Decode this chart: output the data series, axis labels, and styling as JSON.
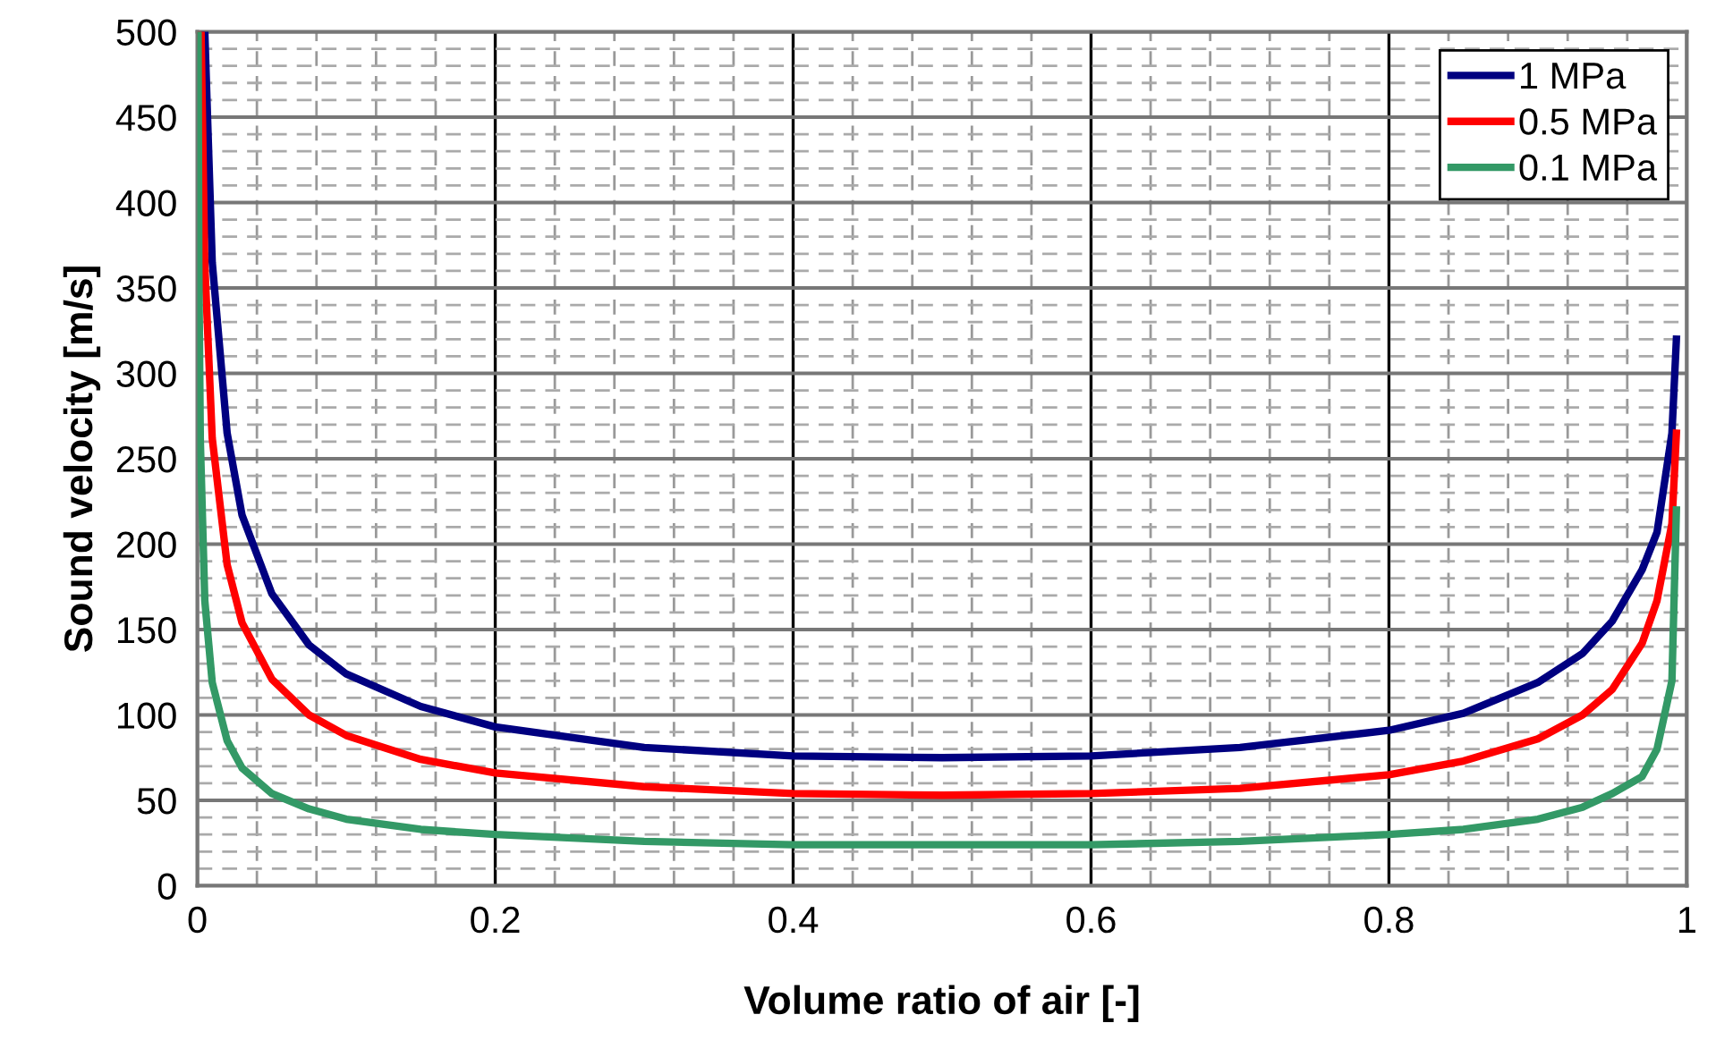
{
  "chart_data": {
    "type": "line",
    "xlabel": "Volume ratio of air [-]",
    "ylabel": "Sound velocity [m/s]",
    "xlim": [
      0,
      1
    ],
    "ylim": [
      0,
      500
    ],
    "xticks": [
      0,
      {
        "value": 0.04,
        "label": null
      },
      {
        "value": 0.08,
        "label": null
      },
      {
        "value": 0.12,
        "label": null
      },
      {
        "value": 0.16,
        "label": null
      },
      0.2,
      {
        "value": 0.24,
        "label": null
      },
      {
        "value": 0.28,
        "label": null
      },
      {
        "value": 0.32,
        "label": null
      },
      {
        "value": 0.36,
        "label": null
      },
      0.4,
      {
        "value": 0.44,
        "label": null
      },
      {
        "value": 0.48,
        "label": null
      },
      {
        "value": 0.52,
        "label": null
      },
      {
        "value": 0.56,
        "label": null
      },
      0.6,
      {
        "value": 0.64,
        "label": null
      },
      {
        "value": 0.68,
        "label": null
      },
      {
        "value": 0.72,
        "label": null
      },
      {
        "value": 0.76,
        "label": null
      },
      0.8,
      {
        "value": 0.84,
        "label": null
      },
      {
        "value": 0.88,
        "label": null
      },
      {
        "value": 0.92,
        "label": null
      },
      {
        "value": 0.96,
        "label": null
      },
      1
    ],
    "yticks": [
      0,
      {
        "value": 10,
        "label": null
      },
      {
        "value": 20,
        "label": null
      },
      {
        "value": 30,
        "label": null
      },
      {
        "value": 40,
        "label": null
      },
      50,
      {
        "value": 60,
        "label": null
      },
      {
        "value": 70,
        "label": null
      },
      {
        "value": 80,
        "label": null
      },
      {
        "value": 90,
        "label": null
      },
      100,
      {
        "value": 110,
        "label": null
      },
      {
        "value": 120,
        "label": null
      },
      {
        "value": 130,
        "label": null
      },
      {
        "value": 140,
        "label": null
      },
      150,
      {
        "value": 160,
        "label": null
      },
      {
        "value": 170,
        "label": null
      },
      {
        "value": 180,
        "label": null
      },
      {
        "value": 190,
        "label": null
      },
      200,
      {
        "value": 210,
        "label": null
      },
      {
        "value": 220,
        "label": null
      },
      {
        "value": 230,
        "label": null
      },
      {
        "value": 240,
        "label": null
      },
      250,
      {
        "value": 260,
        "label": null
      },
      {
        "value": 270,
        "label": null
      },
      {
        "value": 280,
        "label": null
      },
      {
        "value": 290,
        "label": null
      },
      300,
      {
        "value": 310,
        "label": null
      },
      {
        "value": 320,
        "label": null
      },
      {
        "value": 330,
        "label": null
      },
      {
        "value": 340,
        "label": null
      },
      350,
      {
        "value": 360,
        "label": null
      },
      {
        "value": 370,
        "label": null
      },
      {
        "value": 380,
        "label": null
      },
      {
        "value": 390,
        "label": null
      },
      400,
      {
        "value": 410,
        "label": null
      },
      {
        "value": 420,
        "label": null
      },
      {
        "value": 430,
        "label": null
      },
      {
        "value": 440,
        "label": null
      },
      450,
      {
        "value": 460,
        "label": null
      },
      {
        "value": 470,
        "label": null
      },
      {
        "value": 480,
        "label": null
      },
      {
        "value": 490,
        "label": null
      },
      500
    ],
    "grid": true,
    "legend": "top right",
    "marker": "none",
    "line_style": "solid",
    "series": [
      {
        "name": "1 MPa",
        "color": "#000080",
        "x": [
          0.005,
          0.01,
          0.02,
          0.03,
          0.05,
          0.075,
          0.1,
          0.15,
          0.2,
          0.3,
          0.4,
          0.5,
          0.6,
          0.7,
          0.8,
          0.85,
          0.9,
          0.93,
          0.95,
          0.97,
          0.98,
          0.99,
          0.993
        ],
        "values": [
          500,
          365,
          265,
          217,
          171,
          141,
          124,
          105,
          93,
          81,
          76,
          75,
          76,
          81,
          91,
          101,
          119,
          136,
          155,
          185,
          207,
          265,
          320
        ]
      },
      {
        "name": "0.5 MPa",
        "color": "#ff0000",
        "x": [
          0.0025,
          0.005,
          0.01,
          0.02,
          0.03,
          0.05,
          0.075,
          0.1,
          0.15,
          0.2,
          0.3,
          0.4,
          0.5,
          0.6,
          0.7,
          0.8,
          0.85,
          0.9,
          0.93,
          0.95,
          0.97,
          0.98,
          0.99,
          0.993
        ],
        "values": [
          500,
          364,
          262,
          188,
          154,
          121,
          100,
          88,
          74,
          66,
          58,
          54,
          53,
          54,
          57,
          65,
          73,
          86,
          100,
          115,
          142,
          167,
          212,
          265
        ]
      },
      {
        "name": "0.1 MPa",
        "color": "#339966",
        "x": [
          0.0005,
          0.001,
          0.002,
          0.005,
          0.01,
          0.02,
          0.03,
          0.05,
          0.075,
          0.1,
          0.15,
          0.2,
          0.3,
          0.4,
          0.5,
          0.6,
          0.7,
          0.8,
          0.85,
          0.9,
          0.93,
          0.95,
          0.97,
          0.98,
          0.99,
          0.993
        ],
        "values": [
          499,
          363,
          261,
          167,
          119,
          85,
          69,
          54,
          45,
          39,
          33,
          30,
          26,
          24,
          24,
          24,
          26,
          30,
          33,
          39,
          46,
          54,
          64,
          80,
          120,
          220
        ]
      }
    ]
  }
}
